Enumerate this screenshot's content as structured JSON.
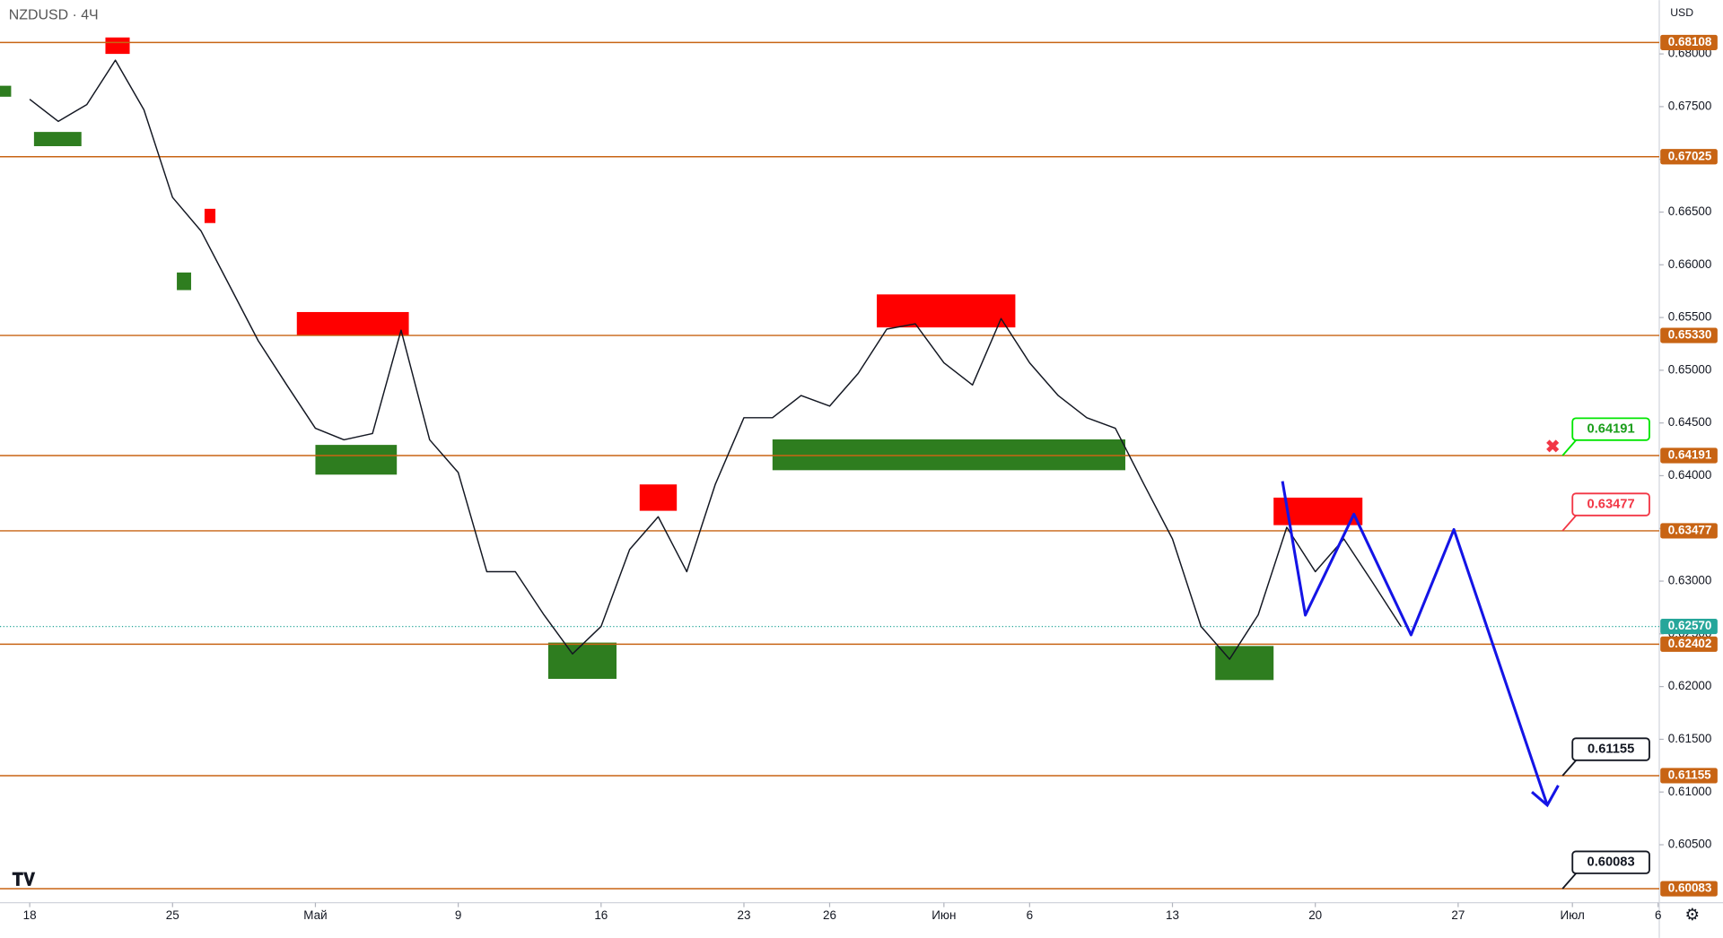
{
  "chart_data": {
    "type": "line",
    "title": "NZDUSD · 4Ч",
    "currency": "USD",
    "xlim": [
      -1.04,
      57.04
    ],
    "ylim": [
      0.5995,
      0.6851
    ],
    "xticks": [
      {
        "value": 0,
        "label": "18"
      },
      {
        "value": 5,
        "label": "25"
      },
      {
        "value": 10,
        "label": "Май"
      },
      {
        "value": 15,
        "label": "9"
      },
      {
        "value": 20,
        "label": "16"
      },
      {
        "value": 25,
        "label": "23"
      },
      {
        "value": 28,
        "label": "26"
      },
      {
        "value": 32,
        "label": "Июн"
      },
      {
        "value": 35,
        "label": "6"
      },
      {
        "value": 40,
        "label": "13"
      },
      {
        "value": 45,
        "label": "20"
      },
      {
        "value": 50,
        "label": "27"
      },
      {
        "value": 54,
        "label": "Июл"
      },
      {
        "value": 57,
        "label": "6"
      }
    ],
    "yticks": [
      {
        "value": 0.605,
        "label": "0.60500"
      },
      {
        "value": 0.61,
        "label": "0.61000"
      },
      {
        "value": 0.615,
        "label": "0.61500"
      },
      {
        "value": 0.62,
        "label": "0.62000"
      },
      {
        "value": 0.625,
        "label": "0.62500"
      },
      {
        "value": 0.63,
        "label": "0.63000"
      },
      {
        "value": 0.635,
        "label": "0.63500"
      },
      {
        "value": 0.64,
        "label": "0.64000"
      },
      {
        "value": 0.645,
        "label": "0.64500"
      },
      {
        "value": 0.65,
        "label": "0.65000"
      },
      {
        "value": 0.655,
        "label": "0.65500"
      },
      {
        "value": 0.66,
        "label": "0.66000"
      },
      {
        "value": 0.665,
        "label": "0.66500"
      },
      {
        "value": 0.67,
        "label": "0.67000"
      },
      {
        "value": 0.675,
        "label": "0.67500"
      },
      {
        "value": 0.68,
        "label": "0.68000"
      }
    ],
    "levels": [
      {
        "value": 0.68108,
        "label": "0.68108"
      },
      {
        "value": 0.67025,
        "label": "0.67025"
      },
      {
        "value": 0.6533,
        "label": "0.65330"
      },
      {
        "value": 0.64191,
        "label": "0.64191"
      },
      {
        "value": 0.63477,
        "label": "0.63477"
      },
      {
        "value": 0.62402,
        "label": "0.62402"
      },
      {
        "value": 0.61155,
        "label": "0.61155"
      },
      {
        "value": 0.60083,
        "label": "0.60083"
      }
    ],
    "level_color": "#c86414",
    "last_price": {
      "value": 0.6257,
      "label": "0.62570",
      "color": "#26a69a"
    },
    "callouts": [
      {
        "value": 0.64191,
        "label": "0.64191",
        "color": "#00e600"
      },
      {
        "value": 0.63477,
        "label": "0.63477",
        "color": "#f23645"
      },
      {
        "value": 0.61155,
        "label": "0.61155",
        "color": "#131722"
      },
      {
        "value": 0.60083,
        "label": "0.60083",
        "color": "#131722"
      }
    ],
    "zones": [
      {
        "x0": 2.65,
        "x1": 3.5,
        "y0": 0.68,
        "y1": 0.68156,
        "color": "#ff0000"
      },
      {
        "x0": 9.35,
        "x1": 13.27,
        "y0": 0.65333,
        "y1": 0.65552,
        "color": "#ff0000"
      },
      {
        "x0": 21.35,
        "x1": 22.65,
        "y0": 0.63667,
        "y1": 0.63917,
        "color": "#ff0000"
      },
      {
        "x0": 29.65,
        "x1": 34.5,
        "y0": 0.65406,
        "y1": 0.65719,
        "color": "#ff0000"
      },
      {
        "x0": 43.54,
        "x1": 46.65,
        "y0": 0.63531,
        "y1": 0.63792,
        "color": "#ff0000"
      },
      {
        "x0": 6.12,
        "x1": 6.5,
        "y0": 0.66396,
        "y1": 0.66531,
        "color": "#ff0000"
      },
      {
        "x0": -1.04,
        "x1": -0.65,
        "y0": 0.67594,
        "y1": 0.67698,
        "color": "#2e7d1f"
      },
      {
        "x0": 0.15,
        "x1": 1.81,
        "y0": 0.67125,
        "y1": 0.6726,
        "color": "#2e7d1f"
      },
      {
        "x0": 5.15,
        "x1": 5.65,
        "y0": 0.6576,
        "y1": 0.65927,
        "color": "#2e7d1f"
      },
      {
        "x0": 10,
        "x1": 12.85,
        "y0": 0.6401,
        "y1": 0.64292,
        "color": "#2e7d1f"
      },
      {
        "x0": 26,
        "x1": 38.35,
        "y0": 0.64052,
        "y1": 0.64344,
        "color": "#2e7d1f"
      },
      {
        "x0": 18.15,
        "x1": 20.54,
        "y0": 0.62073,
        "y1": 0.62417,
        "color": "#2e7d1f"
      },
      {
        "x0": 41.5,
        "x1": 43.54,
        "y0": 0.62062,
        "y1": 0.62385,
        "color": "#2e7d1f"
      }
    ],
    "series": [
      {
        "color": "#131722",
        "x": [
          0,
          1,
          2,
          3,
          4,
          5,
          6,
          7,
          8,
          9,
          10,
          11,
          12,
          13,
          14,
          15,
          16,
          17,
          18,
          19,
          20,
          21,
          22,
          23,
          24,
          25,
          26,
          27,
          28,
          29,
          30,
          31,
          32,
          33,
          34,
          35,
          36,
          37,
          38,
          39,
          40,
          41,
          42,
          43,
          44,
          45,
          46,
          47,
          48
        ],
        "values": [
          0.6757,
          0.6736,
          0.6752,
          0.6794,
          0.6747,
          0.6664,
          0.6632,
          0.658,
          0.6528,
          0.6486,
          0.6445,
          0.6434,
          0.644,
          0.6538,
          0.6434,
          0.6403,
          0.6309,
          0.6309,
          0.6268,
          0.6231,
          0.6257,
          0.633,
          0.6361,
          0.6309,
          0.6392,
          0.6455,
          0.6455,
          0.6476,
          0.6466,
          0.6497,
          0.6539,
          0.6544,
          0.6507,
          0.6486,
          0.6549,
          0.6507,
          0.6476,
          0.6455,
          0.6445,
          0.6392,
          0.634,
          0.6257,
          0.6226,
          0.6268,
          0.6351,
          0.6309,
          0.634,
          0.6299,
          0.6257
        ]
      },
      {
        "color": "#1414e6",
        "x": [
          43.85,
          44.65,
          46.35,
          48.35,
          49.85,
          53.12
        ],
        "values": [
          0.63948,
          0.62677,
          0.63635,
          0.6249,
          0.6349,
          0.60875
        ]
      }
    ]
  }
}
